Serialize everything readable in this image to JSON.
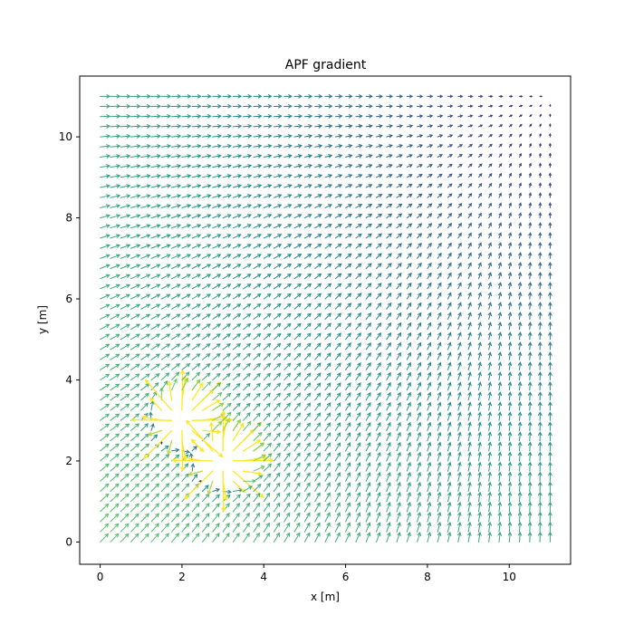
{
  "chart_data": {
    "type": "quiver",
    "title": "APF gradient",
    "xlabel": "x [m]",
    "ylabel": "y [m]",
    "xlim": [
      -0.5,
      11.5
    ],
    "ylim": [
      -0.55,
      11.5
    ],
    "xticks": [
      0,
      2,
      4,
      6,
      8,
      10
    ],
    "yticks": [
      0,
      2,
      4,
      6,
      8,
      10
    ],
    "xtick_labels": [
      "0",
      "2",
      "4",
      "6",
      "8",
      "10"
    ],
    "ytick_labels": [
      "0",
      "2",
      "4",
      "6",
      "8",
      "10"
    ],
    "grid": false,
    "legend": "none",
    "colormap": "viridis",
    "grid_points": {
      "x_start": 0,
      "x_end": 11,
      "x_step": 0.25,
      "y_start": 0,
      "y_end": 11,
      "y_step": 0.25
    },
    "goal": [
      11,
      11
    ],
    "obstacles": [
      [
        2,
        3
      ],
      [
        3,
        2
      ]
    ],
    "colors": {
      "low": "#2f1c63",
      "mid": "#21918c",
      "high": "#e6dc1a"
    }
  }
}
